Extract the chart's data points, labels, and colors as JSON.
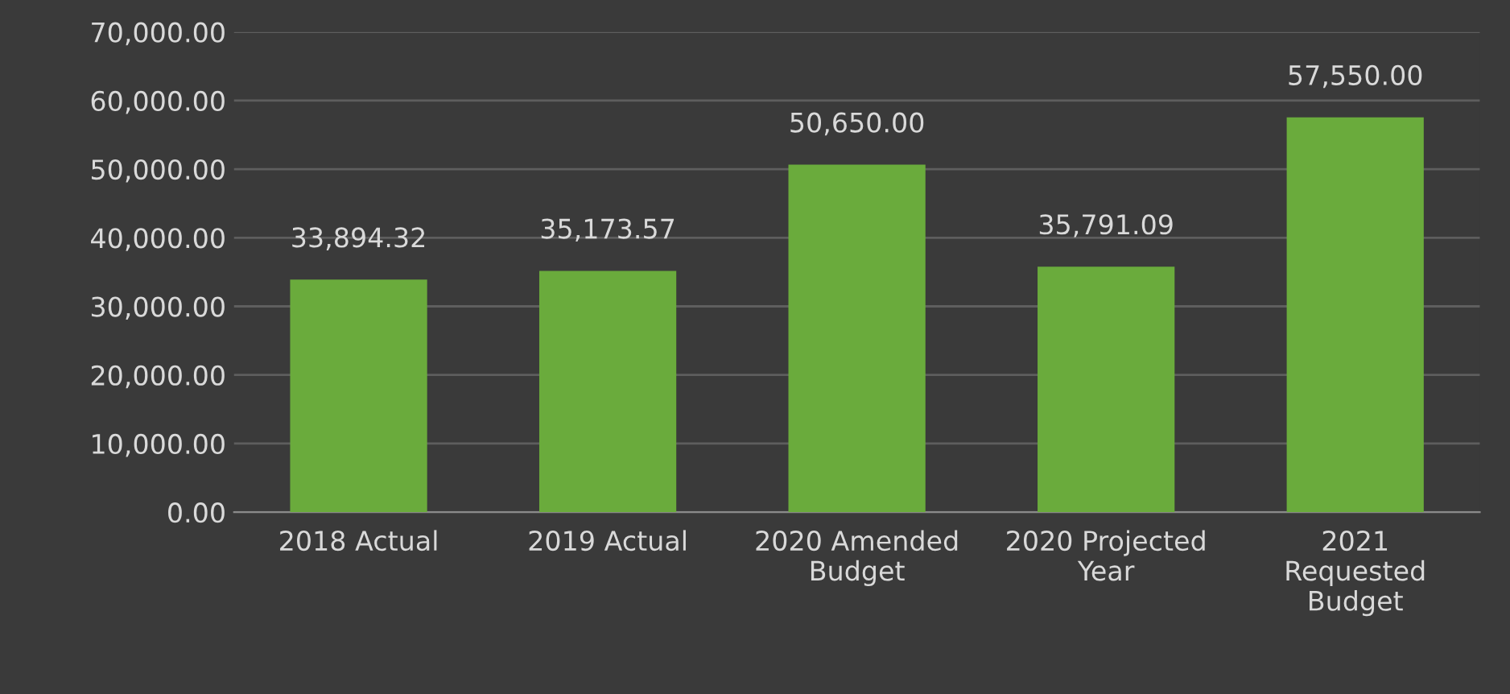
{
  "chart_data": {
    "type": "bar",
    "categories": [
      "2018 Actual",
      "2019 Actual",
      "2020 Amended\nBudget",
      "2020 Projected\nYear",
      "2021\nRequested\nBudget"
    ],
    "values": [
      33894.32,
      35173.57,
      50650.0,
      35791.09,
      57550.0
    ],
    "color": "#6aab3c",
    "ylim": [
      0,
      70000
    ],
    "yticks": [
      {
        "value": 0,
        "label": "0.00"
      },
      {
        "value": 10000,
        "label": "10,000.00"
      },
      {
        "value": 20000,
        "label": "20,000.00"
      },
      {
        "value": 30000,
        "label": "30,000.00"
      },
      {
        "value": 40000,
        "label": "40,000.00"
      },
      {
        "value": 50000,
        "label": "50,000.00"
      },
      {
        "value": 60000,
        "label": "60,000.00"
      },
      {
        "value": 70000,
        "label": "70,000.00"
      }
    ],
    "grid": "y",
    "value_labels": [
      "33,894.32",
      "35,173.57",
      "50,650.00",
      "35,791.09",
      "57,550.00"
    ]
  }
}
